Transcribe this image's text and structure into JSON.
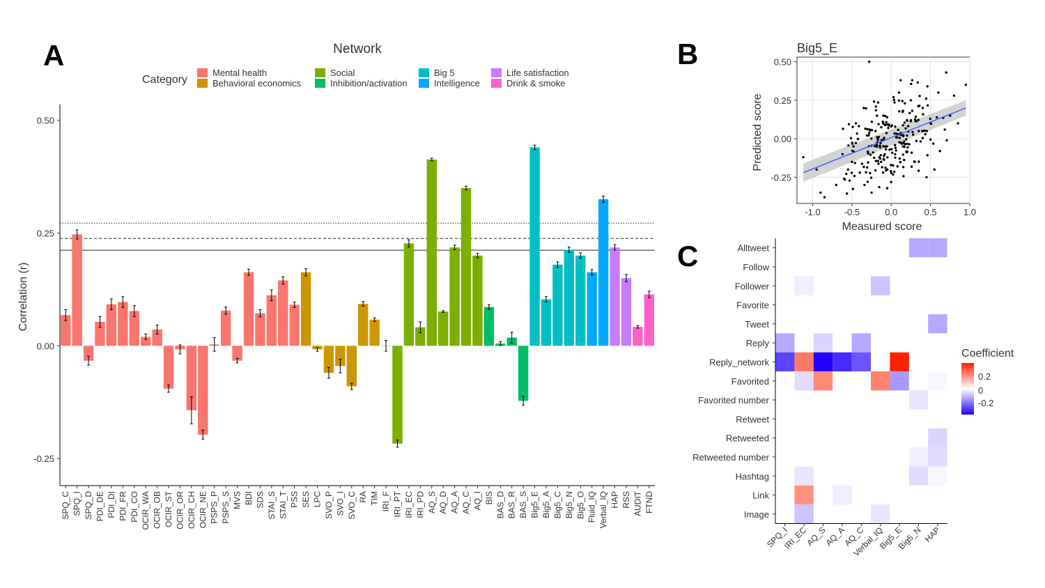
{
  "panels": {
    "a": "A",
    "b": "B",
    "c": "C"
  },
  "panel_a": {
    "legend_title": "Network",
    "legend_subtitle": "Category",
    "legend": [
      {
        "label": "Mental health",
        "color": "#F8766D"
      },
      {
        "label": "Behavioral economics",
        "color": "#CD9600"
      },
      {
        "label": "Social",
        "color": "#7CAE00"
      },
      {
        "label": "Inhibition/activation",
        "color": "#00BE67"
      },
      {
        "label": "Big 5",
        "color": "#00BFC4"
      },
      {
        "label": "Intelligence",
        "color": "#00A9FF"
      },
      {
        "label": "Life satisfaction",
        "color": "#C77CFF"
      },
      {
        "label": "Drink & smoke",
        "color": "#FF61CC"
      }
    ]
  },
  "chart_data": [
    {
      "type": "bar",
      "ylabel": "Correlation (r)",
      "ylim": [
        -0.31,
        0.535
      ],
      "yticks": [
        -0.25,
        0.0,
        0.25,
        0.5
      ],
      "ytick_labels": [
        "-0.25",
        "0.00",
        "0.25",
        "0.50"
      ],
      "reference_lines": [
        {
          "y": 0.272,
          "style": "dotted"
        },
        {
          "y": 0.238,
          "style": "dashed"
        },
        {
          "y": 0.212,
          "style": "solid"
        }
      ],
      "categories": [
        "SPQ_C",
        "SPQ_I",
        "SPQ_D",
        "PDI_DE",
        "PDI_DI",
        "PDI_FR",
        "PDI_CO",
        "OCIR_WA",
        "OCIR_OB",
        "OCIR_ST",
        "OCIR_OR",
        "OCIR_CH",
        "OCIR_NE",
        "PSPS_P",
        "PSPS_S",
        "MVS",
        "BDI",
        "SDS",
        "STAI_S",
        "STAI_T",
        "PSS",
        "SES",
        "LPC",
        "SVO_P",
        "SVO_I",
        "SVO_C",
        "RA",
        "TIM",
        "IRI_F",
        "IRI_PT",
        "IRI_EC",
        "IRI_PD",
        "AQ_S",
        "AQ_D",
        "AQ_A",
        "AQ_C",
        "AQ_I",
        "BIS",
        "BAS_D",
        "BAS_R",
        "BAS_S",
        "Big5_E",
        "Big5_A",
        "Big5_C",
        "Big5_N",
        "Big5_O",
        "Fluid_IQ",
        "Verbal_IQ",
        "HAP",
        "RSS",
        "AUDIT",
        "FTND"
      ],
      "values": [
        0.068,
        0.247,
        -0.033,
        0.053,
        0.092,
        0.097,
        0.077,
        0.02,
        0.036,
        -0.095,
        -0.008,
        -0.143,
        -0.197,
        0.003,
        0.078,
        -0.033,
        0.163,
        0.072,
        0.112,
        0.145,
        0.091,
        0.163,
        -0.008,
        -0.06,
        -0.045,
        -0.09,
        0.093,
        0.058,
        0.0,
        -0.217,
        0.227,
        0.041,
        0.413,
        0.076,
        0.218,
        0.35,
        0.2,
        0.086,
        0.005,
        0.018,
        -0.122,
        0.44,
        0.103,
        0.18,
        0.213,
        0.2,
        0.163,
        0.325,
        0.218,
        0.15,
        0.042,
        0.114
      ],
      "errors": [
        0.012,
        0.01,
        0.01,
        0.012,
        0.012,
        0.012,
        0.012,
        0.006,
        0.01,
        0.008,
        0.01,
        0.03,
        0.01,
        0.015,
        0.008,
        0.005,
        0.007,
        0.008,
        0.012,
        0.008,
        0.006,
        0.008,
        0.004,
        0.012,
        0.015,
        0.007,
        0.005,
        0.004,
        0.012,
        0.008,
        0.008,
        0.012,
        0.003,
        0.002,
        0.005,
        0.004,
        0.005,
        0.005,
        0.004,
        0.012,
        0.01,
        0.005,
        0.006,
        0.006,
        0.006,
        0.006,
        0.006,
        0.007,
        0.006,
        0.008,
        0.003,
        0.007
      ],
      "groups": [
        0,
        0,
        0,
        0,
        0,
        0,
        0,
        0,
        0,
        0,
        0,
        0,
        0,
        0,
        0,
        0,
        0,
        0,
        0,
        0,
        0,
        1,
        1,
        1,
        1,
        1,
        1,
        1,
        2,
        2,
        2,
        2,
        2,
        2,
        2,
        2,
        2,
        3,
        3,
        3,
        3,
        4,
        4,
        4,
        4,
        4,
        5,
        5,
        6,
        6,
        7,
        7
      ]
    },
    {
      "type": "scatter",
      "title": "Big5_E",
      "xlabel": "Measured score",
      "ylabel": "Predicted score",
      "xlim": [
        -1.2,
        1.0
      ],
      "ylim": [
        -0.42,
        0.53
      ],
      "xticks": [
        -1.0,
        -0.5,
        0.0,
        0.5,
        1.0
      ],
      "xtick_labels": [
        "-1.0",
        "-0.5",
        "0.0",
        "0.5",
        "1.0"
      ],
      "yticks": [
        -0.25,
        0.0,
        0.25,
        0.5
      ],
      "ytick_labels": [
        "-0.25",
        "0.00",
        "0.25",
        "0.50"
      ],
      "fit_line": {
        "x": [
          -1.12,
          0.95
        ],
        "y": [
          -0.22,
          0.2
        ],
        "color": "#3366FF"
      },
      "n_points_note": "~250 points, reproduced approximately",
      "points": [
        [
          -0.9,
          -0.35
        ],
        [
          -0.85,
          -0.38
        ],
        [
          -0.7,
          -0.3
        ],
        [
          -0.6,
          -0.26
        ],
        [
          -0.55,
          -0.2
        ],
        [
          -0.5,
          -0.15
        ],
        [
          -0.48,
          -0.05
        ],
        [
          -0.45,
          0.1
        ],
        [
          -0.4,
          -0.22
        ],
        [
          -0.35,
          0.2
        ],
        [
          -0.3,
          -0.28
        ],
        [
          -0.28,
          0.5
        ],
        [
          -0.25,
          -0.35
        ],
        [
          -0.2,
          0.05
        ],
        [
          -0.15,
          -0.12
        ],
        [
          -0.1,
          0.15
        ],
        [
          -0.05,
          -0.2
        ],
        [
          0.0,
          0.08
        ],
        [
          0.05,
          -0.1
        ],
        [
          0.1,
          0.3
        ],
        [
          0.15,
          -0.05
        ],
        [
          0.2,
          0.12
        ],
        [
          0.25,
          0.25
        ],
        [
          0.3,
          -0.15
        ],
        [
          0.35,
          0.05
        ],
        [
          0.4,
          0.2
        ],
        [
          0.5,
          0.1
        ],
        [
          0.55,
          -0.2
        ],
        [
          0.6,
          0.3
        ],
        [
          0.7,
          0.43
        ],
        [
          0.75,
          0.15
        ],
        [
          0.85,
          0.1
        ],
        [
          0.95,
          0.35
        ],
        [
          -1.12,
          -0.12
        ],
        [
          -0.95,
          -0.2
        ],
        [
          0.45,
          -0.25
        ],
        [
          0.62,
          -0.08
        ],
        [
          0.8,
          0.28
        ],
        [
          -0.62,
          -0.1
        ],
        [
          0.12,
          0.38
        ]
      ]
    },
    {
      "type": "heatmap",
      "legend_title": "Coefficient",
      "legend_ticks": [
        "0.2",
        "0",
        "-0.2"
      ],
      "columns": [
        "SPQ_I",
        "IRI_EC",
        "AQ_S",
        "AQ_A",
        "AQ_C",
        "Verbal_IQ",
        "Big5_E",
        "Big5_N",
        "HAP"
      ],
      "rows": [
        "Alltweet",
        "Follow",
        "Follower",
        "Favorite",
        "Tweet",
        "Reply",
        "Reply_network",
        "Favorited",
        "Favorited number",
        "Retweet",
        "Retweeted",
        "Retweeted number",
        "Hashtag",
        "Link",
        "Image"
      ],
      "cells": [
        {
          "row": "Alltweet",
          "col": "Big5_N",
          "v": -0.1
        },
        {
          "row": "Alltweet",
          "col": "HAP",
          "v": -0.1
        },
        {
          "row": "Follower",
          "col": "IRI_EC",
          "v": -0.02
        },
        {
          "row": "Follower",
          "col": "Verbal_IQ",
          "v": -0.07
        },
        {
          "row": "Tweet",
          "col": "HAP",
          "v": -0.1
        },
        {
          "row": "Reply",
          "col": "SPQ_I",
          "v": -0.1
        },
        {
          "row": "Reply",
          "col": "AQ_S",
          "v": -0.05
        },
        {
          "row": "Reply",
          "col": "AQ_C",
          "v": -0.1
        },
        {
          "row": "Reply_network",
          "col": "SPQ_I",
          "v": -0.22
        },
        {
          "row": "Reply_network",
          "col": "IRI_EC",
          "v": 0.18
        },
        {
          "row": "Reply_network",
          "col": "AQ_S",
          "v": -0.3
        },
        {
          "row": "Reply_network",
          "col": "AQ_A",
          "v": -0.25
        },
        {
          "row": "Reply_network",
          "col": "AQ_C",
          "v": -0.2
        },
        {
          "row": "Reply_network",
          "col": "Big5_E",
          "v": 0.3
        },
        {
          "row": "Favorited",
          "col": "IRI_EC",
          "v": -0.04
        },
        {
          "row": "Favorited",
          "col": "AQ_S",
          "v": 0.16
        },
        {
          "row": "Favorited",
          "col": "Verbal_IQ",
          "v": 0.17
        },
        {
          "row": "Favorited",
          "col": "Big5_E",
          "v": -0.12
        },
        {
          "row": "Favorited",
          "col": "HAP",
          "v": -0.01
        },
        {
          "row": "Favorited number",
          "col": "Big5_N",
          "v": -0.03
        },
        {
          "row": "Retweeted",
          "col": "HAP",
          "v": -0.05
        },
        {
          "row": "Retweeted number",
          "col": "Big5_N",
          "v": -0.02
        },
        {
          "row": "Retweeted number",
          "col": "HAP",
          "v": -0.04
        },
        {
          "row": "Hashtag",
          "col": "IRI_EC",
          "v": -0.03
        },
        {
          "row": "Hashtag",
          "col": "Big5_N",
          "v": -0.04
        },
        {
          "row": "Hashtag",
          "col": "HAP",
          "v": -0.01
        },
        {
          "row": "Link",
          "col": "IRI_EC",
          "v": 0.15
        },
        {
          "row": "Link",
          "col": "AQ_A",
          "v": -0.02
        },
        {
          "row": "Image",
          "col": "IRI_EC",
          "v": -0.07
        },
        {
          "row": "Image",
          "col": "Verbal_IQ",
          "v": -0.03
        }
      ]
    }
  ]
}
